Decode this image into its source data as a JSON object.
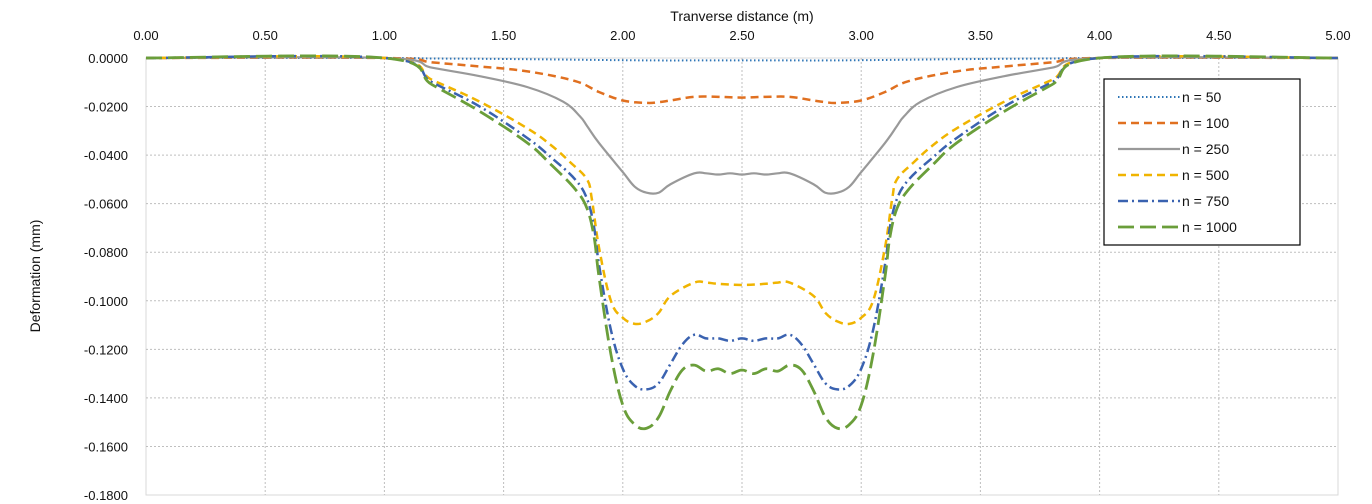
{
  "chart_data": {
    "type": "line",
    "title": "",
    "xlabel": "Tranverse distance (m)",
    "ylabel": "Deformation (mm)",
    "xlim": [
      0,
      5
    ],
    "ylim": [
      -0.18,
      0
    ],
    "x_ticks": [
      "0.00",
      "0.50",
      "1.00",
      "1.50",
      "2.00",
      "2.50",
      "3.00",
      "3.50",
      "4.00",
      "4.50",
      "5.00"
    ],
    "y_ticks": [
      "0.0000",
      "-0.0200",
      "-0.0400",
      "-0.0600",
      "-0.0800",
      "-0.1000",
      "-0.1200",
      "-0.1400",
      "-0.1600",
      "-0.1800"
    ],
    "grid": true,
    "x_axis_position": "top",
    "legend_position": "top-right",
    "series": [
      {
        "name": "n = 50",
        "color": "#2e75b6",
        "style": "dotted",
        "x": [
          0,
          1.0,
          1.2,
          1.5,
          1.8,
          2.0,
          2.15,
          2.3,
          2.5,
          2.7,
          2.85,
          3.0,
          3.2,
          3.5,
          3.8,
          4.0,
          5.0
        ],
        "y": [
          0,
          0,
          -0.0002,
          -0.0004,
          -0.0007,
          -0.0009,
          -0.001,
          -0.001,
          -0.001,
          -0.001,
          -0.001,
          -0.0009,
          -0.0007,
          -0.0004,
          -0.0002,
          0,
          0
        ]
      },
      {
        "name": "n = 100",
        "color": "#e07020",
        "style": "dashed",
        "x": [
          0,
          1.0,
          1.2,
          1.4,
          1.6,
          1.8,
          1.9,
          2.0,
          2.1,
          2.15,
          2.2,
          2.3,
          2.4,
          2.5,
          2.6,
          2.7,
          2.8,
          2.85,
          2.9,
          3.0,
          3.1,
          3.2,
          3.4,
          3.6,
          3.8,
          4.0,
          5.0
        ],
        "y": [
          0,
          0,
          -0.0018,
          -0.0035,
          -0.0055,
          -0.0095,
          -0.014,
          -0.0175,
          -0.0185,
          -0.0182,
          -0.0175,
          -0.016,
          -0.016,
          -0.0163,
          -0.016,
          -0.016,
          -0.0175,
          -0.0182,
          -0.0185,
          -0.0175,
          -0.014,
          -0.0095,
          -0.0055,
          -0.0035,
          -0.0018,
          0,
          0
        ]
      },
      {
        "name": "n = 250",
        "color": "#999999",
        "style": "solid",
        "x": [
          0,
          1.0,
          1.2,
          1.4,
          1.6,
          1.75,
          1.82,
          1.85,
          1.9,
          2.0,
          2.05,
          2.1,
          2.15,
          2.2,
          2.3,
          2.35,
          2.4,
          2.45,
          2.5,
          2.55,
          2.6,
          2.65,
          2.7,
          2.8,
          2.85,
          2.9,
          2.95,
          3.0,
          3.1,
          3.15,
          3.18,
          3.25,
          3.4,
          3.6,
          3.8,
          4.0,
          5.0
        ],
        "y": [
          0,
          0,
          -0.004,
          -0.0075,
          -0.012,
          -0.018,
          -0.024,
          -0.028,
          -0.035,
          -0.047,
          -0.053,
          -0.0555,
          -0.0555,
          -0.052,
          -0.0475,
          -0.0475,
          -0.048,
          -0.0475,
          -0.048,
          -0.0475,
          -0.048,
          -0.0475,
          -0.0475,
          -0.052,
          -0.0555,
          -0.0555,
          -0.053,
          -0.047,
          -0.035,
          -0.028,
          -0.024,
          -0.018,
          -0.012,
          -0.0075,
          -0.004,
          0,
          0
        ]
      },
      {
        "name": "n = 500",
        "color": "#f0b400",
        "style": "dashed",
        "x": [
          0,
          1.0,
          1.2,
          1.4,
          1.6,
          1.7,
          1.78,
          1.85,
          1.87,
          1.9,
          1.95,
          2.0,
          2.05,
          2.1,
          2.15,
          2.2,
          2.3,
          2.35,
          2.4,
          2.5,
          2.6,
          2.65,
          2.7,
          2.8,
          2.85,
          2.9,
          2.95,
          3.0,
          3.05,
          3.1,
          3.13,
          3.15,
          3.22,
          3.3,
          3.4,
          3.6,
          3.8,
          4.0,
          5.0
        ],
        "y": [
          0,
          0,
          -0.009,
          -0.018,
          -0.029,
          -0.036,
          -0.043,
          -0.05,
          -0.058,
          -0.078,
          -0.1,
          -0.107,
          -0.1095,
          -0.1085,
          -0.105,
          -0.098,
          -0.0925,
          -0.0925,
          -0.093,
          -0.0935,
          -0.093,
          -0.0925,
          -0.0925,
          -0.098,
          -0.105,
          -0.1085,
          -0.1095,
          -0.107,
          -0.1,
          -0.078,
          -0.058,
          -0.05,
          -0.043,
          -0.036,
          -0.029,
          -0.018,
          -0.009,
          0,
          0
        ]
      },
      {
        "name": "n = 750",
        "color": "#3a62b0",
        "style": "dashdot",
        "x": [
          0,
          1.0,
          1.2,
          1.4,
          1.6,
          1.7,
          1.8,
          1.85,
          1.88,
          1.9,
          1.95,
          2.0,
          2.05,
          2.1,
          2.15,
          2.2,
          2.25,
          2.3,
          2.35,
          2.4,
          2.45,
          2.5,
          2.55,
          2.6,
          2.65,
          2.7,
          2.75,
          2.8,
          2.85,
          2.9,
          2.95,
          3.0,
          3.05,
          3.1,
          3.12,
          3.15,
          3.2,
          3.3,
          3.4,
          3.6,
          3.8,
          4.0,
          5.0
        ],
        "y": [
          0,
          0,
          -0.01,
          -0.02,
          -0.033,
          -0.041,
          -0.05,
          -0.058,
          -0.07,
          -0.085,
          -0.112,
          -0.128,
          -0.135,
          -0.1365,
          -0.134,
          -0.126,
          -0.118,
          -0.114,
          -0.1155,
          -0.1155,
          -0.1165,
          -0.1155,
          -0.1165,
          -0.1155,
          -0.1155,
          -0.114,
          -0.118,
          -0.126,
          -0.134,
          -0.1365,
          -0.135,
          -0.128,
          -0.112,
          -0.085,
          -0.07,
          -0.058,
          -0.05,
          -0.041,
          -0.033,
          -0.02,
          -0.01,
          0,
          0
        ]
      },
      {
        "name": "n = 1000",
        "color": "#6a9e3a",
        "style": "longdash",
        "x": [
          0,
          1.0,
          1.2,
          1.4,
          1.6,
          1.7,
          1.8,
          1.85,
          1.88,
          1.9,
          1.95,
          2.0,
          2.05,
          2.1,
          2.15,
          2.2,
          2.25,
          2.3,
          2.35,
          2.4,
          2.45,
          2.5,
          2.55,
          2.6,
          2.65,
          2.7,
          2.75,
          2.8,
          2.85,
          2.9,
          2.95,
          3.0,
          3.05,
          3.1,
          3.12,
          3.15,
          3.2,
          3.3,
          3.4,
          3.6,
          3.8,
          4.0,
          5.0
        ],
        "y": [
          0,
          0,
          -0.011,
          -0.022,
          -0.035,
          -0.044,
          -0.054,
          -0.062,
          -0.074,
          -0.09,
          -0.122,
          -0.143,
          -0.151,
          -0.1525,
          -0.148,
          -0.137,
          -0.1285,
          -0.1265,
          -0.129,
          -0.128,
          -0.13,
          -0.1285,
          -0.13,
          -0.128,
          -0.129,
          -0.1265,
          -0.1285,
          -0.137,
          -0.148,
          -0.1525,
          -0.151,
          -0.143,
          -0.122,
          -0.09,
          -0.074,
          -0.062,
          -0.054,
          -0.044,
          -0.035,
          -0.022,
          -0.011,
          0,
          0
        ]
      }
    ]
  }
}
